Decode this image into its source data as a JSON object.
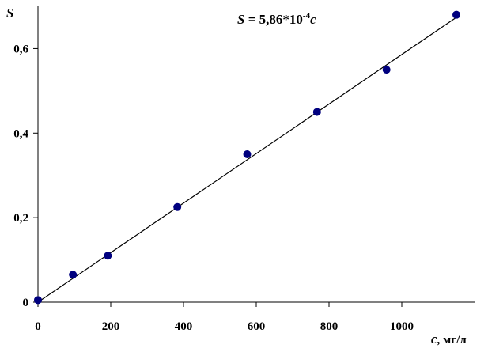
{
  "chart_data": {
    "type": "scatter",
    "title": "",
    "xlabel": "c",
    "xunit": ", мг/л",
    "ylabel": "S",
    "xlim": [
      0,
      1200
    ],
    "ylim": [
      0,
      0.7
    ],
    "xticks": [
      0,
      200,
      400,
      600,
      800,
      1000
    ],
    "yticks": [
      0,
      0.2,
      0.4,
      0.6
    ],
    "xtick_labels": [
      "0",
      "200",
      "400",
      "600",
      "800",
      "1000"
    ],
    "ytick_labels": [
      "0",
      "0,2",
      "0,4",
      "0,6"
    ],
    "grid": false,
    "legend": "none",
    "series": [
      {
        "x": [
          0,
          96,
          192,
          383,
          575,
          767,
          958,
          1150
        ],
        "y": [
          0.005,
          0.065,
          0.11,
          0.225,
          0.35,
          0.45,
          0.55,
          0.68
        ],
        "color": "#00007f"
      }
    ],
    "trendline": {
      "slope": 0.000586,
      "x": [
        0,
        1150
      ],
      "color": "#000000"
    },
    "annotation": {
      "prefix": "S",
      "equals": " = 5,86*10",
      "exponent": "-4",
      "suffix": "c"
    }
  }
}
